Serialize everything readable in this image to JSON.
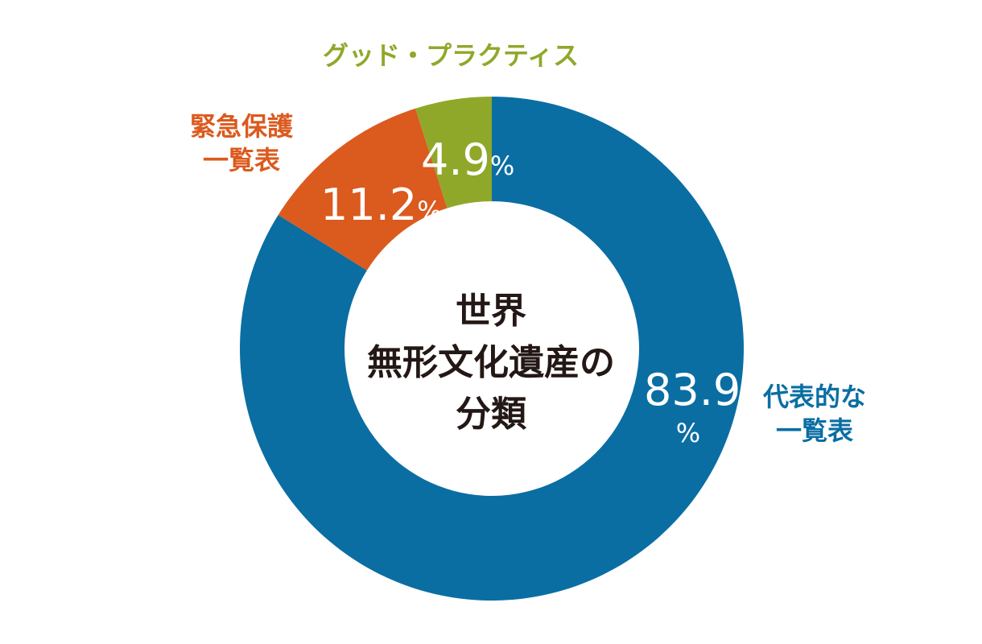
{
  "chart_data": {
    "type": "pie",
    "title": [
      "世界",
      "無形文化遺産の",
      "分類"
    ],
    "slices": [
      {
        "name_lines": [
          "代表的な",
          "一覧表"
        ],
        "value": 83.9,
        "value_label": "83.9",
        "unit": "%",
        "color": "#0a6ea3"
      },
      {
        "name_lines": [
          "緊急保護",
          "一覧表"
        ],
        "value": 11.2,
        "value_label": "11.2",
        "unit": "%",
        "color": "#db5a1e"
      },
      {
        "name_lines": [
          "グッド・プラクティス"
        ],
        "value": 4.9,
        "value_label": "4.9",
        "unit": "%",
        "color": "#8fa82a"
      }
    ]
  }
}
